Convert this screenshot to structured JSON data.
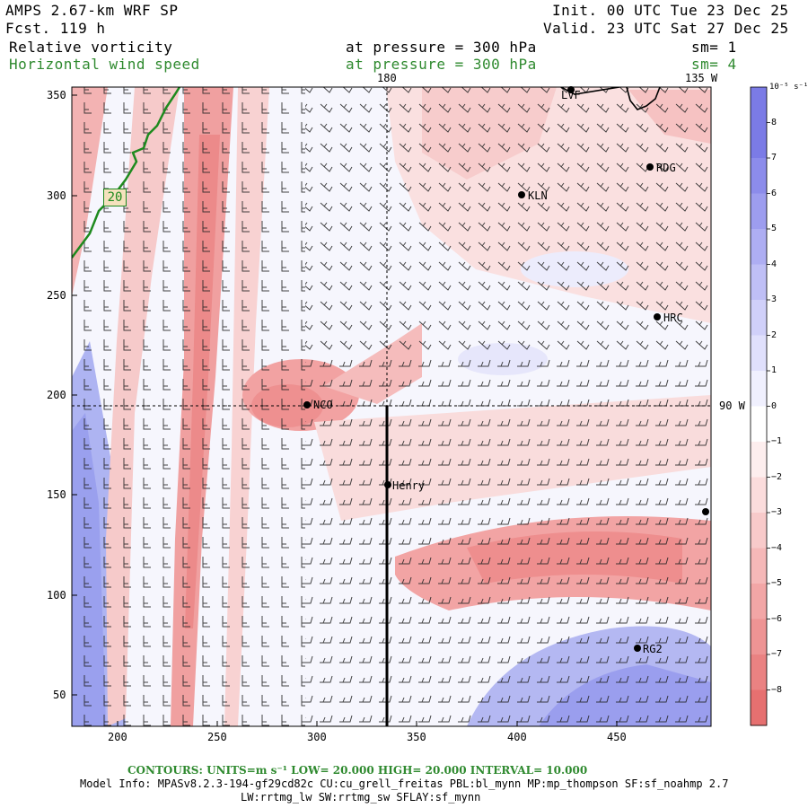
{
  "header": {
    "model": "AMPS 2.67-km WRF SP",
    "fcst": "Fcst.  119 h",
    "init": "Init. 00 UTC Tue 23 Dec 25",
    "valid": "Valid. 23 UTC Sat 27 Dec 25",
    "field1_name": "Relative vorticity",
    "field1_level": "at pressure =  300 hPa",
    "field1_sm": "sm= 1",
    "field2_name": "Horizontal wind speed",
    "field2_level": "at pressure =  300 hPa",
    "field2_sm": "sm= 4"
  },
  "map": {
    "x_ticks": [
      "200",
      "250",
      "300",
      "350",
      "400",
      "450"
    ],
    "y_ticks": [
      "350",
      "300",
      "250",
      "200",
      "150",
      "100",
      "50"
    ],
    "meridian_180": "180",
    "meridian_135w": "135 W",
    "meridian_90w": "90 W",
    "contour_label": "20",
    "stations": [
      "LVF",
      "RDG",
      "KLN",
      "HRC",
      "NCO",
      "Henry",
      "RG2"
    ]
  },
  "colorbar": {
    "unit_label": "10⁻⁵ s⁻¹",
    "labels": [
      "8",
      "7",
      "6",
      "5",
      "4",
      "3",
      "2",
      "1",
      "0",
      "−1",
      "−2",
      "−3",
      "−4",
      "−5",
      "−6",
      "−7",
      "−8"
    ],
    "colors": [
      "#7b7be6",
      "#8c8ceb",
      "#9d9def",
      "#aeaef3",
      "#bfbff6",
      "#d0d0f9",
      "#e0e0fc",
      "#f0f0fe",
      "#ffffff",
      "#fdeeee",
      "#fbdcdc",
      "#f8caca",
      "#f5b8b8",
      "#f2a6a6",
      "#ee9494",
      "#ea8282",
      "#e67070"
    ]
  },
  "footer": {
    "contours": "CONTOURS:  UNITS=m s⁻¹  LOW=  20.000     HIGH=  20.000     INTERVAL=   10.000",
    "model_info": "Model Info: MPASv8.2.3-194-gf29cd82c CU:cu_grell_freitas PBL:bl_mynn MP:mp_thompson SF:sf_noahmp 2.7",
    "physics": "LW:rrtmg_lw SW:rrtmg_sw SFLAY:sf_mynn"
  }
}
